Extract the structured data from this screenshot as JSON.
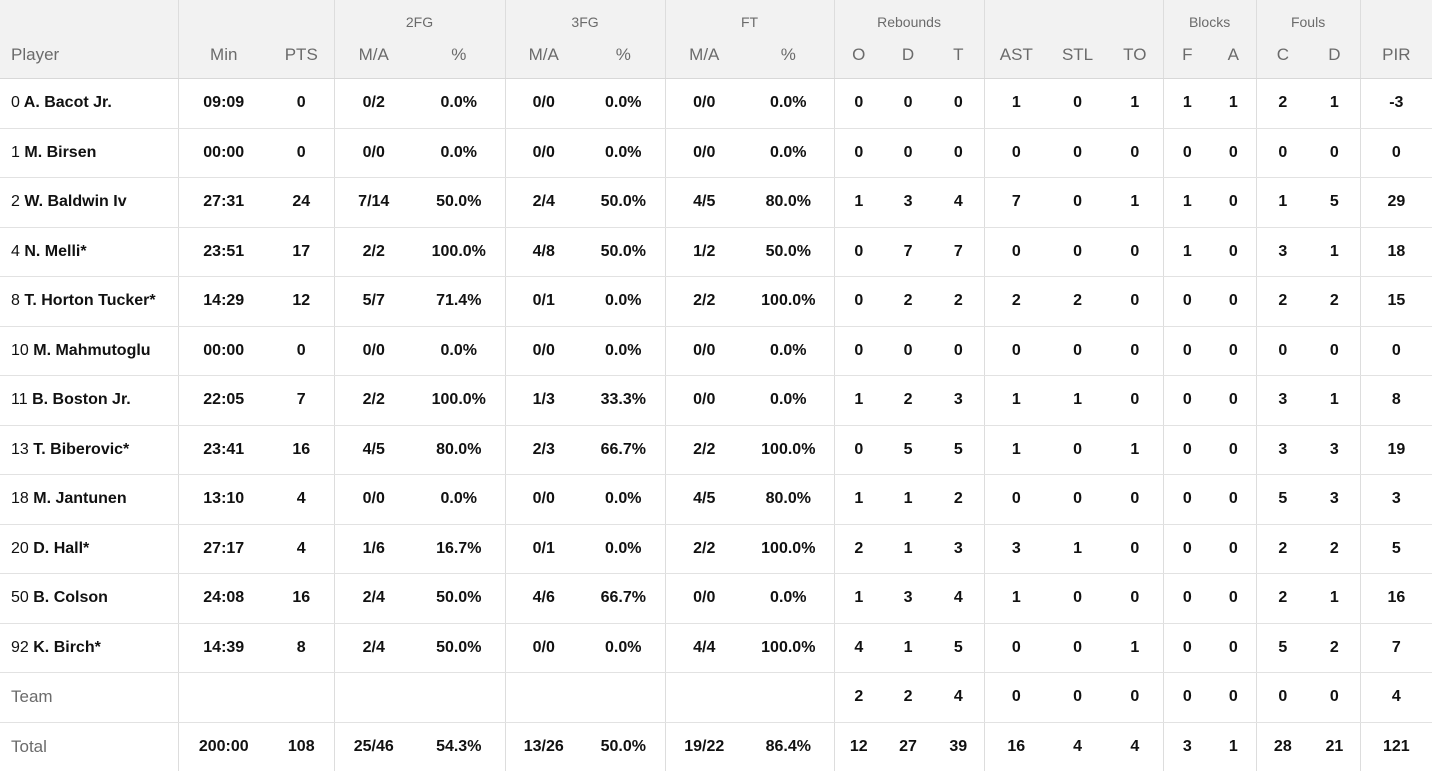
{
  "header": {
    "groups": {
      "fg2": "2FG",
      "fg3": "3FG",
      "ft": "FT",
      "rebounds": "Rebounds",
      "blocks": "Blocks",
      "fouls": "Fouls"
    },
    "columns": [
      "Player",
      "Min",
      "PTS",
      "M/A",
      "%",
      "M/A",
      "%",
      "M/A",
      "%",
      "O",
      "D",
      "T",
      "AST",
      "STL",
      "TO",
      "F",
      "A",
      "C",
      "D",
      "PIR"
    ]
  },
  "players": [
    {
      "num": "0",
      "name": "A. Bacot Jr.",
      "stats": [
        "09:09",
        "0",
        "0/2",
        "0.0%",
        "0/0",
        "0.0%",
        "0/0",
        "0.0%",
        "0",
        "0",
        "0",
        "1",
        "0",
        "1",
        "1",
        "1",
        "2",
        "1",
        "-3"
      ]
    },
    {
      "num": "1",
      "name": "M. Birsen",
      "stats": [
        "00:00",
        "0",
        "0/0",
        "0.0%",
        "0/0",
        "0.0%",
        "0/0",
        "0.0%",
        "0",
        "0",
        "0",
        "0",
        "0",
        "0",
        "0",
        "0",
        "0",
        "0",
        "0"
      ]
    },
    {
      "num": "2",
      "name": "W. Baldwin Iv",
      "stats": [
        "27:31",
        "24",
        "7/14",
        "50.0%",
        "2/4",
        "50.0%",
        "4/5",
        "80.0%",
        "1",
        "3",
        "4",
        "7",
        "0",
        "1",
        "1",
        "0",
        "1",
        "5",
        "29"
      ]
    },
    {
      "num": "4",
      "name": "N. Melli*",
      "stats": [
        "23:51",
        "17",
        "2/2",
        "100.0%",
        "4/8",
        "50.0%",
        "1/2",
        "50.0%",
        "0",
        "7",
        "7",
        "0",
        "0",
        "0",
        "1",
        "0",
        "3",
        "1",
        "18"
      ]
    },
    {
      "num": "8",
      "name": "T. Horton Tucker*",
      "stats": [
        "14:29",
        "12",
        "5/7",
        "71.4%",
        "0/1",
        "0.0%",
        "2/2",
        "100.0%",
        "0",
        "2",
        "2",
        "2",
        "2",
        "0",
        "0",
        "0",
        "2",
        "2",
        "15"
      ]
    },
    {
      "num": "10",
      "name": "M. Mahmutoglu",
      "stats": [
        "00:00",
        "0",
        "0/0",
        "0.0%",
        "0/0",
        "0.0%",
        "0/0",
        "0.0%",
        "0",
        "0",
        "0",
        "0",
        "0",
        "0",
        "0",
        "0",
        "0",
        "0",
        "0"
      ]
    },
    {
      "num": "11",
      "name": "B. Boston Jr.",
      "stats": [
        "22:05",
        "7",
        "2/2",
        "100.0%",
        "1/3",
        "33.3%",
        "0/0",
        "0.0%",
        "1",
        "2",
        "3",
        "1",
        "1",
        "0",
        "0",
        "0",
        "3",
        "1",
        "8"
      ]
    },
    {
      "num": "13",
      "name": "T. Biberovic*",
      "stats": [
        "23:41",
        "16",
        "4/5",
        "80.0%",
        "2/3",
        "66.7%",
        "2/2",
        "100.0%",
        "0",
        "5",
        "5",
        "1",
        "0",
        "1",
        "0",
        "0",
        "3",
        "3",
        "19"
      ]
    },
    {
      "num": "18",
      "name": "M. Jantunen",
      "stats": [
        "13:10",
        "4",
        "0/0",
        "0.0%",
        "0/0",
        "0.0%",
        "4/5",
        "80.0%",
        "1",
        "1",
        "2",
        "0",
        "0",
        "0",
        "0",
        "0",
        "5",
        "3",
        "3"
      ]
    },
    {
      "num": "20",
      "name": "D. Hall*",
      "stats": [
        "27:17",
        "4",
        "1/6",
        "16.7%",
        "0/1",
        "0.0%",
        "2/2",
        "100.0%",
        "2",
        "1",
        "3",
        "3",
        "1",
        "0",
        "0",
        "0",
        "2",
        "2",
        "5"
      ]
    },
    {
      "num": "50",
      "name": "B. Colson",
      "stats": [
        "24:08",
        "16",
        "2/4",
        "50.0%",
        "4/6",
        "66.7%",
        "0/0",
        "0.0%",
        "1",
        "3",
        "4",
        "1",
        "0",
        "0",
        "0",
        "0",
        "2",
        "1",
        "16"
      ]
    },
    {
      "num": "92",
      "name": "K. Birch*",
      "stats": [
        "14:39",
        "8",
        "2/4",
        "50.0%",
        "0/0",
        "0.0%",
        "4/4",
        "100.0%",
        "4",
        "1",
        "5",
        "0",
        "0",
        "1",
        "0",
        "0",
        "5",
        "2",
        "7"
      ]
    }
  ],
  "team": {
    "label": "Team",
    "stats": [
      "",
      "",
      "",
      "",
      "",
      "",
      "",
      "",
      "2",
      "2",
      "4",
      "0",
      "0",
      "0",
      "0",
      "0",
      "0",
      "0",
      "4"
    ]
  },
  "total": {
    "label": "Total",
    "stats": [
      "200:00",
      "108",
      "25/46",
      "54.3%",
      "13/26",
      "50.0%",
      "19/22",
      "86.4%",
      "12",
      "27",
      "39",
      "16",
      "4",
      "4",
      "3",
      "1",
      "28",
      "21",
      "121"
    ]
  }
}
